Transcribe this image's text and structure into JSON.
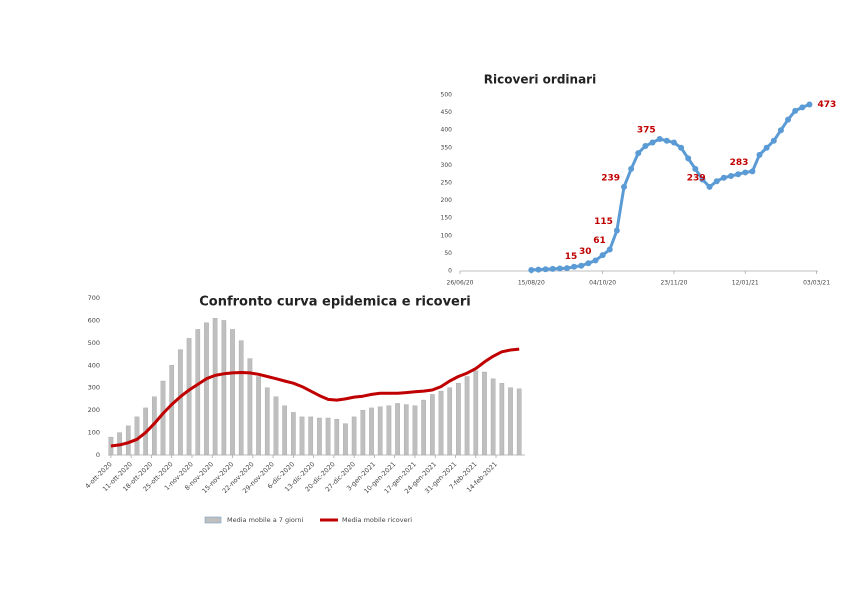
{
  "chart_data": [
    {
      "type": "line",
      "title": "Ricoveri ordinari",
      "x": [
        "2020-08-15",
        "2020-08-20",
        "2020-08-25",
        "2020-08-30",
        "2020-09-04",
        "2020-09-09",
        "2020-09-14",
        "2020-09-19",
        "2020-09-24",
        "2020-09-29",
        "2020-10-04",
        "2020-10-09",
        "2020-10-14",
        "2020-10-19",
        "2020-10-24",
        "2020-10-29",
        "2020-11-03",
        "2020-11-08",
        "2020-11-13",
        "2020-11-18",
        "2020-11-23",
        "2020-11-28",
        "2020-12-03",
        "2020-12-08",
        "2020-12-13",
        "2020-12-18",
        "2020-12-23",
        "2020-12-28",
        "2021-01-02",
        "2021-01-07",
        "2021-01-12",
        "2021-01-17",
        "2021-01-22",
        "2021-01-27",
        "2021-02-01",
        "2021-02-06",
        "2021-02-11",
        "2021-02-16",
        "2021-02-21",
        "2021-02-26"
      ],
      "series": [
        {
          "color": "#5b9bd5",
          "values": [
            3,
            4,
            5,
            6,
            7,
            8,
            12,
            15,
            22,
            30,
            45,
            61,
            115,
            239,
            290,
            335,
            355,
            365,
            375,
            370,
            365,
            350,
            320,
            290,
            260,
            239,
            255,
            265,
            270,
            275,
            280,
            283,
            330,
            350,
            370,
            400,
            430,
            455,
            465,
            473
          ],
          "value_labels": [
            null,
            null,
            null,
            null,
            null,
            null,
            null,
            "15",
            null,
            "30",
            null,
            "61",
            "115",
            "239",
            null,
            null,
            null,
            null,
            "375",
            null,
            null,
            null,
            null,
            null,
            null,
            "239",
            null,
            null,
            null,
            null,
            null,
            "283",
            null,
            null,
            null,
            null,
            null,
            null,
            null,
            "473"
          ]
        }
      ],
      "label_color": "#c00000",
      "xlim": [
        "2020-06-26",
        "2021-03-04"
      ],
      "xticks": [
        {
          "value": "2020-06-26",
          "label": "26/06/20"
        },
        {
          "value": "2020-08-15",
          "label": "15/08/20"
        },
        {
          "value": "2020-10-04",
          "label": "04/10/20"
        },
        {
          "value": "2020-11-23",
          "label": "23/11/20"
        },
        {
          "value": "2021-01-12",
          "label": "12/01/21"
        },
        {
          "value": "2021-03-03",
          "label": "03/03/21"
        }
      ],
      "ylim": [
        0,
        500
      ],
      "yticks": [
        0,
        50,
        100,
        150,
        200,
        250,
        300,
        350,
        400,
        450,
        500
      ],
      "grid": false
    },
    {
      "type": "combo",
      "title": "Confronto curva epidemica e ricoveri",
      "x": [
        "2020-10-04",
        "2020-10-07",
        "2020-10-10",
        "2020-10-13",
        "2020-10-16",
        "2020-10-19",
        "2020-10-22",
        "2020-10-25",
        "2020-10-28",
        "2020-10-31",
        "2020-11-03",
        "2020-11-06",
        "2020-11-09",
        "2020-11-12",
        "2020-11-15",
        "2020-11-18",
        "2020-11-21",
        "2020-11-24",
        "2020-11-27",
        "2020-11-30",
        "2020-12-03",
        "2020-12-06",
        "2020-12-09",
        "2020-12-12",
        "2020-12-15",
        "2020-12-18",
        "2020-12-21",
        "2020-12-24",
        "2020-12-27",
        "2020-12-30",
        "2021-01-02",
        "2021-01-05",
        "2021-01-08",
        "2021-01-11",
        "2021-01-14",
        "2021-01-17",
        "2021-01-20",
        "2021-01-23",
        "2021-01-26",
        "2021-01-29",
        "2021-02-01",
        "2021-02-04",
        "2021-02-07",
        "2021-02-10",
        "2021-02-13",
        "2021-02-16",
        "2021-02-19",
        "2021-02-22"
      ],
      "series": [
        {
          "name": "Media mobile a 7 giorni",
          "type": "bar",
          "color": "#bfbfbf",
          "values": [
            80,
            100,
            130,
            170,
            210,
            260,
            330,
            400,
            470,
            520,
            560,
            590,
            610,
            600,
            560,
            510,
            430,
            350,
            300,
            260,
            220,
            190,
            170,
            170,
            165,
            165,
            160,
            140,
            170,
            200,
            210,
            215,
            220,
            230,
            225,
            220,
            245,
            270,
            285,
            300,
            320,
            350,
            375,
            370,
            340,
            320,
            300,
            295
          ]
        },
        {
          "name": "Media mobile ricoveri",
          "type": "line",
          "color": "#c00000",
          "values": [
            40,
            45,
            55,
            70,
            100,
            140,
            185,
            225,
            260,
            290,
            315,
            340,
            355,
            362,
            366,
            368,
            366,
            360,
            350,
            340,
            330,
            320,
            305,
            285,
            265,
            248,
            245,
            250,
            258,
            262,
            270,
            275,
            275,
            275,
            278,
            282,
            285,
            290,
            305,
            330,
            350,
            365,
            385,
            415,
            440,
            460,
            468,
            472
          ]
        }
      ],
      "xlim": [
        "2020-10-03",
        "2021-02-24"
      ],
      "xticks": [
        {
          "value": "2020-10-04",
          "label": "4-ott-2020"
        },
        {
          "value": "2020-10-11",
          "label": "11-ott-2020"
        },
        {
          "value": "2020-10-18",
          "label": "18-ott-2020"
        },
        {
          "value": "2020-10-25",
          "label": "25-ott-2020"
        },
        {
          "value": "2020-11-01",
          "label": "1-nov-2020"
        },
        {
          "value": "2020-11-08",
          "label": "8-nov-2020"
        },
        {
          "value": "2020-11-15",
          "label": "15-nov-2020"
        },
        {
          "value": "2020-11-22",
          "label": "22-nov-2020"
        },
        {
          "value": "2020-11-29",
          "label": "29-nov-2020"
        },
        {
          "value": "2020-12-06",
          "label": "6-dic-2020"
        },
        {
          "value": "2020-12-13",
          "label": "13-dic-2020"
        },
        {
          "value": "2020-12-20",
          "label": "20-dic-2020"
        },
        {
          "value": "2020-12-27",
          "label": "27-dic-2020"
        },
        {
          "value": "2021-01-03",
          "label": "3-gen-2021"
        },
        {
          "value": "2021-01-10",
          "label": "10-gen-2021"
        },
        {
          "value": "2021-01-17",
          "label": "17-gen-2021"
        },
        {
          "value": "2021-01-24",
          "label": "24-gen-2021"
        },
        {
          "value": "2021-01-31",
          "label": "31-gen-2021"
        },
        {
          "value": "2021-02-07",
          "label": "7-feb-2021"
        },
        {
          "value": "2021-02-14",
          "label": "14-feb-2021"
        }
      ],
      "ylim": [
        0,
        700
      ],
      "yticks": [
        0,
        100,
        200,
        300,
        400,
        500,
        600,
        700
      ],
      "grid": false,
      "legend": "bottom"
    }
  ]
}
